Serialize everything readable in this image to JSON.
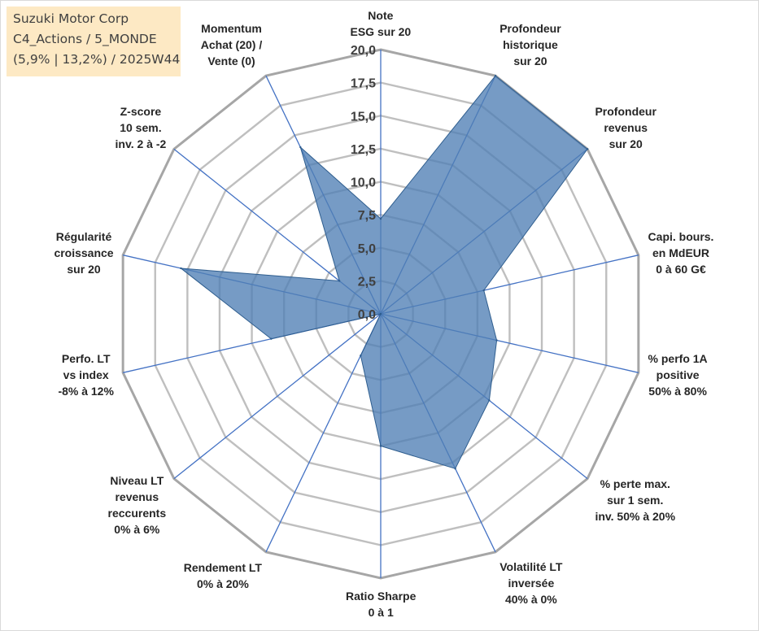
{
  "title_box": {
    "line1": "Suzuki Motor Corp",
    "line2": "C4_Actions / 5_MONDE",
    "line3": "(5,9% | 13,2%) / 2025W44"
  },
  "chart_data": {
    "type": "radar",
    "title": "Suzuki Motor Corp",
    "rmin": 0,
    "rmax": 20,
    "tick_step": 2.5,
    "tick_labels": [
      "0,0",
      "2,5",
      "5,0",
      "7,5",
      "10,0",
      "12,5",
      "15,0",
      "17,5",
      "20,0"
    ],
    "axes": [
      {
        "lines": [
          "Note",
          "ESG sur 20"
        ],
        "value": 7.2
      },
      {
        "lines": [
          "Profondeur",
          "historique",
          "sur 20"
        ],
        "value": 20.0
      },
      {
        "lines": [
          "Profondeur",
          "revenus",
          "sur 20"
        ],
        "value": 20.0
      },
      {
        "lines": [
          "Capi. bours.",
          "en MdEUR",
          "0 à 60 G€"
        ],
        "value": 8.0
      },
      {
        "lines": [
          "% perfo 1A",
          "positive",
          "50% à 80%"
        ],
        "value": 9.0
      },
      {
        "lines": [
          "% perte max.",
          "sur 1 sem.",
          "inv. 50% à 20%"
        ],
        "value": 10.5
      },
      {
        "lines": [
          "Volatilité LT",
          "inversée",
          "40% à 0%"
        ],
        "value": 13.0
      },
      {
        "lines": [
          "Ratio Sharpe",
          "0 à 1"
        ],
        "value": 10.0
      },
      {
        "lines": [
          "Rendement LT",
          "0% à 20%"
        ],
        "value": 3.5
      },
      {
        "lines": [
          "Niveau LT",
          "revenus",
          "reccurents",
          "0% à 6%"
        ],
        "value": 0.0
      },
      {
        "lines": [
          "Perfo. LT",
          "vs index",
          "-8% à 12%"
        ],
        "value": 8.5
      },
      {
        "lines": [
          "Régularité",
          "croissance",
          "sur 20"
        ],
        "value": 15.5
      },
      {
        "lines": [
          "Z-score",
          "10 sem.",
          "inv. 2 à -2"
        ],
        "value": 4.0
      },
      {
        "lines": [
          "Momentum",
          "Achat (20) /",
          "Vente (0)"
        ],
        "value": 14.0
      }
    ],
    "colors": {
      "fill": "#4f7fb5",
      "stroke": "#2e5d8e",
      "spoke": "#4472c4",
      "grid": "#bfbfbf",
      "outer": "#a6a6a6"
    }
  }
}
